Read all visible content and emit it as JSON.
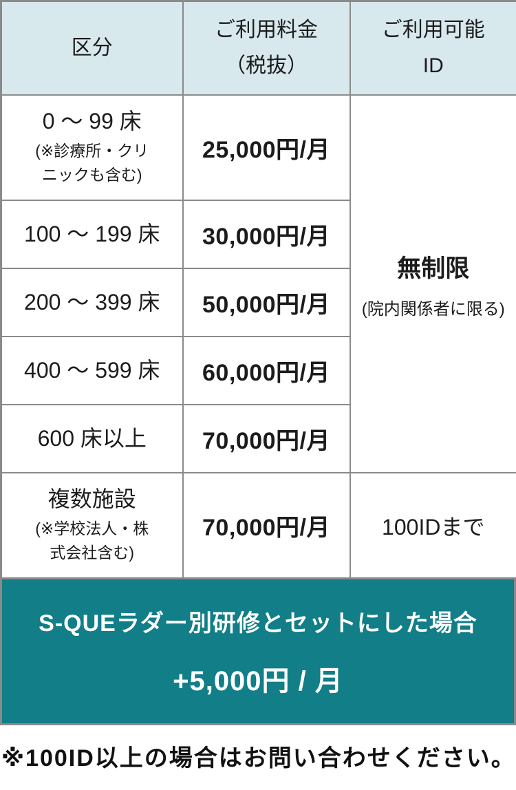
{
  "colors": {
    "header_bg": "#d8e9ee",
    "banner_bg": "#117e88",
    "border": "#8a8a8a",
    "banner_text": "#ffffff"
  },
  "table": {
    "headers": {
      "category": "区分",
      "fee": "ご利用料金\n（税抜）",
      "ids": "ご利用可能\nID"
    },
    "rows": [
      {
        "category": "0 〜 99 床",
        "category_note": "(※診療所・クリ\nニックも含む)",
        "price": "25,000円/月"
      },
      {
        "category": "100 〜 199 床",
        "category_note": "",
        "price": "30,000円/月"
      },
      {
        "category": "200 〜 399 床",
        "category_note": "",
        "price": "50,000円/月"
      },
      {
        "category": "400 〜 599 床",
        "category_note": "",
        "price": "60,000円/月"
      },
      {
        "category": "600 床以上",
        "category_note": "",
        "price": "70,000円/月"
      },
      {
        "category": "複数施設",
        "category_note": "(※学校法人・株\n式会社含む)",
        "price": "70,000円/月"
      }
    ],
    "merged_id_cell": {
      "main": "無制限",
      "note": "(院内関係者に限る)"
    },
    "last_row_id_cell": "100IDまで"
  },
  "banner": {
    "line1": "S-QUEラダー別研修とセットにした場合",
    "line2": "+5,000円 / 月"
  },
  "footnote": "※100ID以上の場合はお問い合わせください。"
}
